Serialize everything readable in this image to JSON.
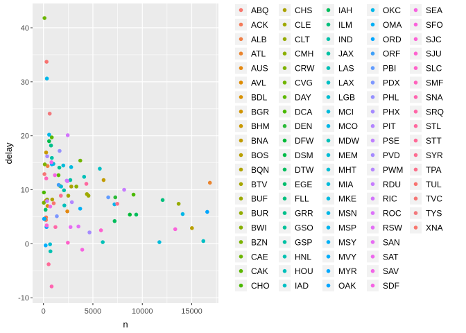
{
  "chart_data": {
    "type": "scatter",
    "xlabel": "n",
    "ylabel": "delay",
    "xlim": [
      -1100,
      17700
    ],
    "ylim": [
      -11,
      44.5
    ],
    "x_ticks": [
      0,
      5000,
      10000,
      15000
    ],
    "x_tick_labels": [
      "0",
      "5000",
      "10000",
      "15000"
    ],
    "y_ticks": [
      -10,
      0,
      10,
      20,
      30,
      40
    ],
    "y_tick_labels": [
      "-10",
      "0",
      "10",
      "20",
      "30",
      "40"
    ],
    "grid": true,
    "legend_position": "right",
    "legend_columns": 6,
    "series": [
      {
        "name": "ABQ",
        "color": "#F8766D",
        "points": [
          [
            254,
            4.4
          ]
        ]
      },
      {
        "name": "ACK",
        "color": "#F47B5A",
        "points": [
          [
            264,
            4.9
          ]
        ]
      },
      {
        "name": "ALB",
        "color": "#EF7F45",
        "points": [
          [
            418,
            14.4
          ]
        ]
      },
      {
        "name": "ATL",
        "color": "#EA842E",
        "points": [
          [
            16837,
            11.3
          ]
        ]
      },
      {
        "name": "AUS",
        "color": "#E4880F",
        "points": [
          [
            2411,
            6.0
          ]
        ]
      },
      {
        "name": "AVL",
        "color": "#DE8C00",
        "points": [
          [
            261,
            8.0
          ]
        ]
      },
      {
        "name": "BDL",
        "color": "#D89000",
        "points": [
          [
            412,
            7.0
          ]
        ]
      },
      {
        "name": "BGR",
        "color": "#D09400",
        "points": [
          [
            358,
            8.0
          ]
        ]
      },
      {
        "name": "BHM",
        "color": "#C99800",
        "points": [
          [
            269,
            16.9
          ]
        ]
      },
      {
        "name": "BNA",
        "color": "#C19C00",
        "points": [
          [
            6084,
            11.8
          ]
        ]
      },
      {
        "name": "BOS",
        "color": "#B99F00",
        "points": [
          [
            15022,
            2.9
          ]
        ]
      },
      {
        "name": "BQN",
        "color": "#B0A300",
        "points": [
          [
            888,
            8.2
          ]
        ]
      },
      {
        "name": "BTV",
        "color": "#A6A600",
        "points": [
          [
            2510,
            8.9
          ]
        ]
      },
      {
        "name": "BUF",
        "color": "#9CA900",
        "points": [
          [
            4555,
            8.9
          ]
        ]
      },
      {
        "name": "BUR",
        "color": "#92AC00",
        "points": [
          [
            370,
            8.2
          ]
        ]
      },
      {
        "name": "BWI",
        "color": "#86AF00",
        "points": [
          [
            1687,
            10.7
          ]
        ]
      },
      {
        "name": "BZN",
        "color": "#7AB200",
        "points": [
          [
            35,
            7.6
          ]
        ]
      },
      {
        "name": "CAE",
        "color": "#6BB500",
        "points": [
          [
            106,
            41.8
          ]
        ]
      },
      {
        "name": "CAK",
        "color": "#5BB700",
        "points": [
          [
            842,
            19.7
          ]
        ]
      },
      {
        "name": "CHO",
        "color": "#4BB900",
        "points": [
          [
            46,
            9.5
          ]
        ]
      },
      {
        "name": "CHS",
        "color": "#AAA200",
        "points": [
          [
            2815,
            10.6
          ]
        ]
      },
      {
        "name": "CLE",
        "color": "#9FA900",
        "points": [
          [
            4394,
            9.2
          ]
        ]
      },
      {
        "name": "CLT",
        "color": "#96AB00",
        "points": [
          [
            13674,
            7.4
          ]
        ]
      },
      {
        "name": "CMH",
        "color": "#8BAF00",
        "points": [
          [
            3326,
            10.6
          ]
        ]
      },
      {
        "name": "CRW",
        "color": "#7EB200",
        "points": [
          [
            134,
            14.7
          ]
        ]
      },
      {
        "name": "CVG",
        "color": "#70B500",
        "points": [
          [
            3725,
            15.4
          ]
        ]
      },
      {
        "name": "DAY",
        "color": "#5EB800",
        "points": [
          [
            1525,
            12.7
          ]
        ]
      },
      {
        "name": "DCA",
        "color": "#4AB900",
        "points": [
          [
            9111,
            9.1
          ]
        ]
      },
      {
        "name": "DEN",
        "color": "#2BBA38",
        "points": [
          [
            7266,
            8.6
          ]
        ]
      },
      {
        "name": "DFW",
        "color": "#00BA38",
        "points": [
          [
            8738,
            5.4
          ]
        ]
      },
      {
        "name": "DSM",
        "color": "#00BC49",
        "points": [
          [
            569,
            19.0
          ]
        ]
      },
      {
        "name": "DTW",
        "color": "#00BD5C",
        "points": [
          [
            9384,
            5.4
          ]
        ]
      },
      {
        "name": "EGE",
        "color": "#00BE6D",
        "points": [
          [
            213,
            6.3
          ]
        ]
      },
      {
        "name": "FLL",
        "color": "#00BF7D",
        "points": [
          [
            12055,
            8.1
          ]
        ]
      },
      {
        "name": "GRR",
        "color": "#00C08B",
        "points": [
          [
            765,
            18.2
          ]
        ]
      },
      {
        "name": "GSO",
        "color": "#00C199",
        "points": [
          [
            1606,
            14.1
          ]
        ]
      },
      {
        "name": "GSP",
        "color": "#00C1A5",
        "points": [
          [
            849,
            15.9
          ]
        ]
      },
      {
        "name": "HNL",
        "color": "#00C1B1",
        "points": [
          [
            707,
            -1.4
          ]
        ]
      },
      {
        "name": "HOU",
        "color": "#00C0BB",
        "points": [
          [
            2115,
            7.1
          ]
        ]
      },
      {
        "name": "IAD",
        "color": "#00BFC4",
        "points": [
          [
            5700,
            13.9
          ]
        ]
      },
      {
        "name": "IAH",
        "color": "#00BD5C",
        "points": [
          [
            7198,
            4.2
          ]
        ]
      },
      {
        "name": "ILM",
        "color": "#00BF7D",
        "points": [
          [
            110,
            4.6
          ]
        ]
      },
      {
        "name": "IND",
        "color": "#00C0AA",
        "points": [
          [
            2077,
            9.9
          ]
        ]
      },
      {
        "name": "JAX",
        "color": "#00C1A3",
        "points": [
          [
            2720,
            11.8
          ]
        ]
      },
      {
        "name": "LAS",
        "color": "#00C0B6",
        "points": [
          [
            5997,
            0.3
          ]
        ]
      },
      {
        "name": "LAX",
        "color": "#00BFC4",
        "points": [
          [
            16174,
            0.5
          ]
        ]
      },
      {
        "name": "LGB",
        "color": "#00BDD0",
        "points": [
          [
            668,
            -0.1
          ]
        ]
      },
      {
        "name": "MCI",
        "color": "#00BADB",
        "points": [
          [
            2008,
            14.5
          ]
        ]
      },
      {
        "name": "MCO",
        "color": "#00B6E6",
        "points": [
          [
            14082,
            5.5
          ]
        ]
      },
      {
        "name": "MDW",
        "color": "#00C0B8",
        "points": [
          [
            4113,
            12.4
          ]
        ]
      },
      {
        "name": "MEM",
        "color": "#00BCD6",
        "points": [
          [
            1789,
            10.6
          ]
        ]
      },
      {
        "name": "MHT",
        "color": "#00BDD4",
        "points": [
          [
            1009,
            14.8
          ]
        ]
      },
      {
        "name": "MIA",
        "color": "#00BBDA",
        "points": [
          [
            11728,
            0.3
          ]
        ]
      },
      {
        "name": "MKE",
        "color": "#00BAE0",
        "points": [
          [
            2802,
            14.2
          ]
        ]
      },
      {
        "name": "MSN",
        "color": "#00B7E6",
        "points": [
          [
            572,
            20.2
          ]
        ]
      },
      {
        "name": "MSP",
        "color": "#00B4EE",
        "points": [
          [
            7185,
            7.3
          ]
        ]
      },
      {
        "name": "MSY",
        "color": "#00B0F6",
        "points": [
          [
            3715,
            6.5
          ]
        ]
      },
      {
        "name": "MVY",
        "color": "#00ADFA",
        "points": [
          [
            221,
            -0.3
          ]
        ]
      },
      {
        "name": "MYR",
        "color": "#00A9FF",
        "points": [
          [
            59,
            4.6
          ]
        ]
      },
      {
        "name": "OAK",
        "color": "#04A5FF",
        "points": [
          [
            309,
            3.1
          ]
        ]
      },
      {
        "name": "OKC",
        "color": "#00B7E9",
        "points": [
          [
            346,
            30.6
          ]
        ]
      },
      {
        "name": "OMA",
        "color": "#00AFF5",
        "points": [
          [
            849,
            14.7
          ]
        ]
      },
      {
        "name": "ORD",
        "color": "#00A6FF",
        "points": [
          [
            16566,
            5.9
          ]
        ]
      },
      {
        "name": "ORF",
        "color": "#3E9FF8",
        "points": [
          [
            1536,
            10.9
          ]
        ]
      },
      {
        "name": "PBI",
        "color": "#619CFF",
        "points": [
          [
            6554,
            8.6
          ]
        ]
      },
      {
        "name": "PDX",
        "color": "#7D97FF",
        "points": [
          [
            1354,
            5.1
          ]
        ]
      },
      {
        "name": "PHL",
        "color": "#9590FF",
        "points": [
          [
            1632,
            17.2
          ]
        ]
      },
      {
        "name": "PHX",
        "color": "#A58AFF",
        "points": [
          [
            4656,
            2.1
          ]
        ]
      },
      {
        "name": "PIT",
        "color": "#B385FF",
        "points": [
          [
            2875,
            7.7
          ]
        ]
      },
      {
        "name": "PSE",
        "color": "#BF80FF",
        "points": [
          [
            365,
            7.9
          ]
        ]
      },
      {
        "name": "PVD",
        "color": "#A58AFF",
        "points": [
          [
            376,
            16.2
          ]
        ]
      },
      {
        "name": "PWM",
        "color": "#B686FF",
        "points": [
          [
            2352,
            11.7
          ]
        ]
      },
      {
        "name": "RDU",
        "color": "#C77CFF",
        "points": [
          [
            8163,
            10.0
          ]
        ]
      },
      {
        "name": "RIC",
        "color": "#D274FC",
        "points": [
          [
            2454,
            20.1
          ]
        ]
      },
      {
        "name": "ROC",
        "color": "#DC71FA",
        "points": [
          [
            2416,
            11.6
          ]
        ]
      },
      {
        "name": "RSW",
        "color": "#E36EF6",
        "points": [
          [
            3537,
            3.2
          ]
        ]
      },
      {
        "name": "SAN",
        "color": "#E76BF3",
        "points": [
          [
            2737,
            3.1
          ]
        ]
      },
      {
        "name": "SAT",
        "color": "#ED68ED",
        "points": [
          [
            686,
            6.9
          ]
        ]
      },
      {
        "name": "SAV",
        "color": "#F265E7",
        "points": [
          [
            804,
            15.1
          ]
        ]
      },
      {
        "name": "SDF",
        "color": "#F564E3",
        "points": [
          [
            1157,
            12.7
          ]
        ]
      },
      {
        "name": "SEA",
        "color": "#F763E0",
        "points": [
          [
            3923,
            -1.1
          ]
        ]
      },
      {
        "name": "SFO",
        "color": "#FA62DB",
        "points": [
          [
            13331,
            2.7
          ]
        ]
      },
      {
        "name": "SJC",
        "color": "#FC61D5",
        "points": [
          [
            329,
            3.4
          ]
        ]
      },
      {
        "name": "SJU",
        "color": "#FE61CF",
        "points": [
          [
            5819,
            2.5
          ]
        ]
      },
      {
        "name": "SLC",
        "color": "#FF61C9",
        "points": [
          [
            2467,
            0.2
          ]
        ]
      },
      {
        "name": "SMF",
        "color": "#FF62BC",
        "points": [
          [
            284,
            12.1
          ]
        ]
      },
      {
        "name": "SNA",
        "color": "#FF64B0",
        "points": [
          [
            825,
            -7.9
          ]
        ]
      },
      {
        "name": "SRQ",
        "color": "#FF66A8",
        "points": [
          [
            1211,
            3.1
          ]
        ]
      },
      {
        "name": "STL",
        "color": "#FF689F",
        "points": [
          [
            4339,
            11.1
          ]
        ]
      },
      {
        "name": "STT",
        "color": "#FF6A98",
        "points": [
          [
            522,
            -3.8
          ]
        ]
      },
      {
        "name": "SYR",
        "color": "#FD6C91",
        "points": [
          [
            1761,
            8.9
          ]
        ]
      },
      {
        "name": "TPA",
        "color": "#FB6F8A",
        "points": [
          [
            7466,
            7.4
          ]
        ]
      },
      {
        "name": "TUL",
        "color": "#F8726F",
        "points": [
          [
            315,
            33.7
          ]
        ]
      },
      {
        "name": "TVC",
        "color": "#F57574",
        "points": [
          [
            101,
            12.9
          ]
        ]
      },
      {
        "name": "TYS",
        "color": "#F2787C",
        "points": [
          [
            631,
            24.1
          ]
        ]
      },
      {
        "name": "XNA",
        "color": "#F8766D",
        "points": [
          [
            1036,
            7.5
          ]
        ]
      }
    ]
  }
}
